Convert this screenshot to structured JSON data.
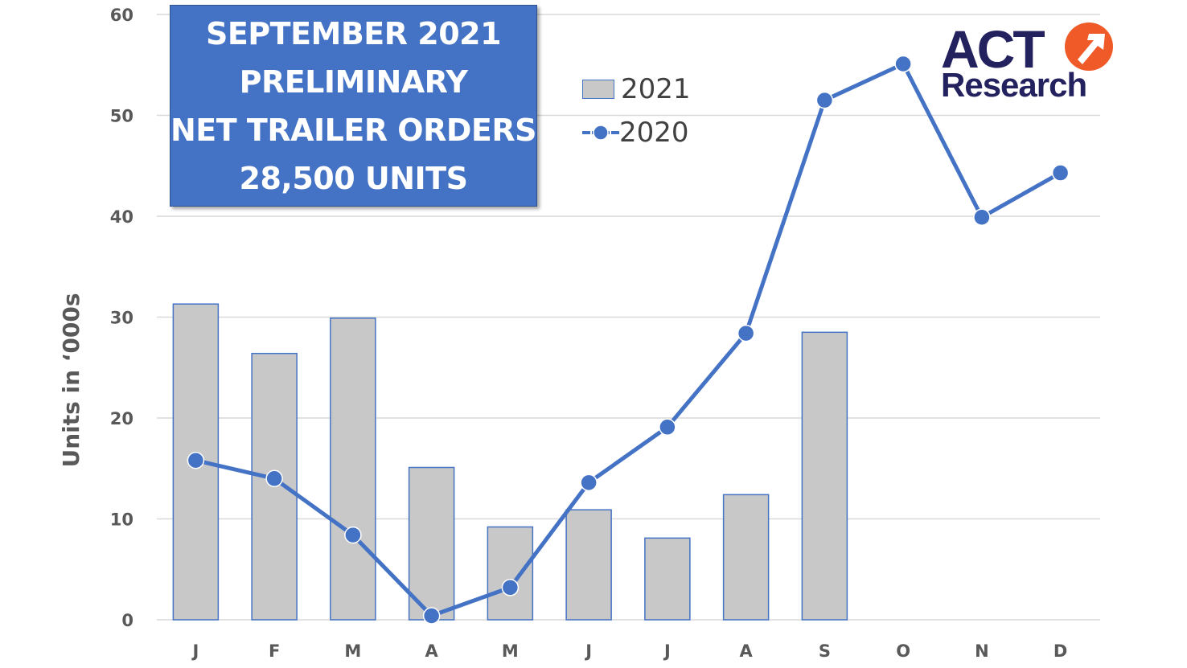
{
  "chart_data": {
    "type": "bar+line",
    "categories": [
      "J",
      "F",
      "M",
      "A",
      "M",
      "J",
      "J",
      "A",
      "S",
      "O",
      "N",
      "D"
    ],
    "series": [
      {
        "name": "2021",
        "type": "bar",
        "color": "#C8C8C8",
        "edge_color": "#4472C4",
        "values": [
          31.3,
          26.4,
          29.9,
          15.1,
          9.2,
          10.9,
          8.1,
          12.4,
          28.5,
          null,
          null,
          null
        ]
      },
      {
        "name": "2020",
        "type": "line",
        "color": "#4472C4",
        "values": [
          15.8,
          14.0,
          8.4,
          0.4,
          3.2,
          13.6,
          19.1,
          28.4,
          51.5,
          55.1,
          39.9,
          44.3
        ]
      }
    ],
    "ylabel": "Units in ‘000s",
    "ylim": [
      0,
      60
    ],
    "yticks": [
      "0",
      "10",
      "20",
      "30",
      "40",
      "50",
      "60"
    ],
    "grid": true,
    "legend": "top-center",
    "annotation": [
      "SEPTEMBER 2021",
      "PRELIMINARY",
      "NET TRAILER ORDERS",
      "28,500 UNITS"
    ]
  },
  "logo": {
    "text_top": "ACT",
    "text_bottom": "Research",
    "primary_color": "#24215F",
    "accent_color": "#F05A28"
  }
}
